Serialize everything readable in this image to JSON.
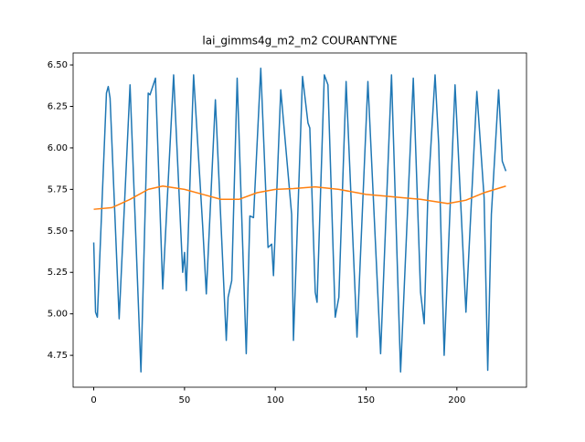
{
  "chart_data": {
    "type": "line",
    "title": "lai_gimms4g_m2_m2 COURANTYNE",
    "xlim": [
      -11.35,
      238.35
    ],
    "ylim": [
      4.558,
      6.572
    ],
    "xticks": [
      0,
      50,
      100,
      150,
      200
    ],
    "yticks": [
      {
        "value": 4.75,
        "label": "4.75"
      },
      {
        "value": 5.0,
        "label": "5.00"
      },
      {
        "value": 5.25,
        "label": "5.25"
      },
      {
        "value": 5.5,
        "label": "5.50"
      },
      {
        "value": 5.75,
        "label": "5.75"
      },
      {
        "value": 6.0,
        "label": "6.00"
      },
      {
        "value": 6.25,
        "label": "6.25"
      },
      {
        "value": 6.5,
        "label": "6.50"
      }
    ],
    "series": [
      {
        "color": "#1f77b4",
        "x": [
          0,
          1,
          2,
          7,
          8,
          9,
          14,
          20,
          26,
          30,
          31,
          34,
          38,
          44,
          49,
          50,
          51,
          55,
          60,
          62,
          67,
          73,
          74,
          76,
          79,
          84,
          86,
          88,
          92,
          96,
          98,
          99,
          103,
          109,
          110,
          115,
          118,
          119,
          122,
          123,
          127,
          129,
          133,
          135,
          139,
          145,
          151,
          158,
          164,
          169,
          176,
          180,
          182,
          184,
          188,
          190,
          193,
          199,
          205,
          211,
          215,
          217,
          219,
          223,
          225,
          227
        ],
        "values": [
          5.43,
          5.01,
          4.98,
          6.33,
          6.37,
          6.3,
          4.97,
          6.38,
          4.65,
          6.33,
          6.32,
          6.42,
          5.15,
          6.44,
          5.25,
          5.37,
          5.14,
          6.44,
          5.53,
          5.12,
          6.29,
          4.84,
          5.1,
          5.2,
          6.42,
          4.76,
          5.59,
          5.58,
          6.48,
          5.4,
          5.42,
          5.23,
          6.35,
          5.6,
          4.84,
          6.43,
          6.15,
          6.12,
          5.13,
          5.07,
          6.44,
          6.38,
          4.98,
          5.1,
          6.4,
          4.86,
          6.4,
          4.76,
          6.44,
          4.65,
          6.42,
          5.13,
          4.94,
          5.7,
          6.44,
          6.02,
          4.75,
          6.38,
          5.01,
          6.34,
          5.7,
          4.66,
          5.6,
          6.35,
          5.92,
          5.86
        ]
      },
      {
        "color": "#ff7f0e",
        "x": [
          0,
          10,
          20,
          30,
          38,
          50,
          60,
          70,
          80,
          90,
          100,
          110,
          122,
          135,
          150,
          160,
          170,
          180,
          195,
          205,
          215,
          227
        ],
        "values": [
          5.63,
          5.64,
          5.69,
          5.75,
          5.77,
          5.75,
          5.72,
          5.69,
          5.69,
          5.73,
          5.75,
          5.755,
          5.765,
          5.75,
          5.72,
          5.71,
          5.7,
          5.69,
          5.665,
          5.685,
          5.73,
          5.77
        ]
      }
    ]
  }
}
